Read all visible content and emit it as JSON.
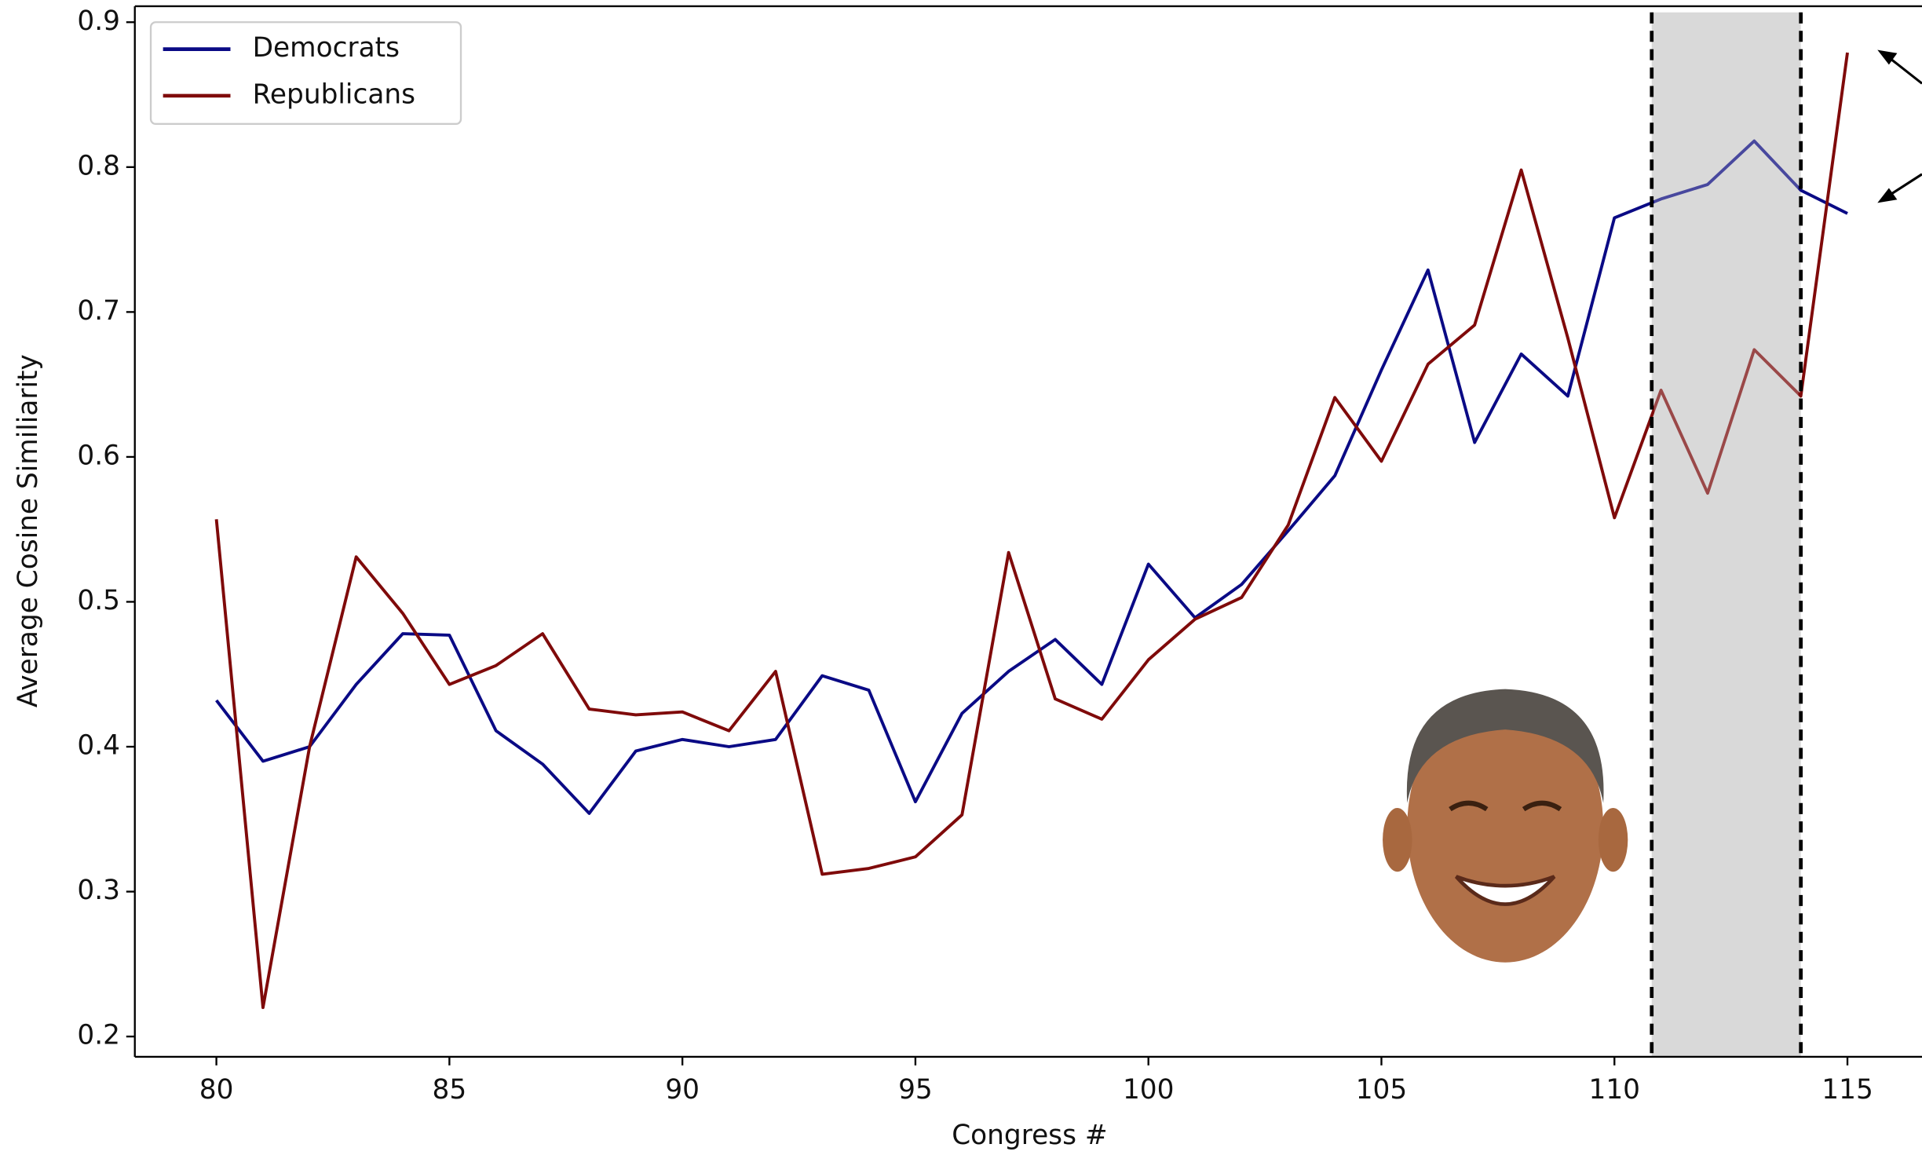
{
  "chart_data": {
    "type": "line",
    "xlabel": "Congress #",
    "ylabel": "Average Cosine Similiarity",
    "x": [
      80,
      81,
      82,
      83,
      84,
      85,
      86,
      87,
      88,
      89,
      90,
      91,
      92,
      93,
      94,
      95,
      96,
      97,
      98,
      99,
      100,
      101,
      102,
      103,
      104,
      105,
      106,
      107,
      108,
      109,
      110,
      111,
      112,
      113,
      114,
      115
    ],
    "series": [
      {
        "name": "Democrats",
        "color": "#0a0a85",
        "values": [
          0.432,
          0.39,
          0.4,
          0.443,
          0.478,
          0.477,
          0.411,
          0.388,
          0.354,
          0.397,
          0.405,
          0.4,
          0.405,
          0.449,
          0.439,
          0.362,
          0.423,
          0.452,
          0.474,
          0.443,
          0.526,
          0.489,
          0.512,
          0.549,
          0.587,
          0.66,
          0.729,
          0.61,
          0.671,
          0.642,
          0.765,
          0.778,
          0.788,
          0.818,
          0.784,
          0.768
        ]
      },
      {
        "name": "Republicans",
        "color": "#7f0a0a",
        "values": [
          0.557,
          0.22,
          0.4,
          0.531,
          0.492,
          0.443,
          0.456,
          0.478,
          0.426,
          0.422,
          0.424,
          0.411,
          0.452,
          0.312,
          0.316,
          0.324,
          0.353,
          0.534,
          0.433,
          0.419,
          0.46,
          0.488,
          0.503,
          0.553,
          0.641,
          0.597,
          0.664,
          0.691,
          0.798,
          0.682,
          0.558,
          0.646,
          0.575,
          0.674,
          0.642,
          0.879
        ]
      }
    ],
    "xlim": [
      78.25,
      116.6
    ],
    "ylim": [
      0.186,
      0.911
    ],
    "xticks": [
      80,
      85,
      90,
      95,
      100,
      105,
      110,
      115
    ],
    "yticks": [
      0.2,
      0.3,
      0.4,
      0.5,
      0.6,
      0.7,
      0.8,
      0.9
    ],
    "shaded_region": [
      110.8,
      114
    ],
    "legend": "upper left"
  }
}
